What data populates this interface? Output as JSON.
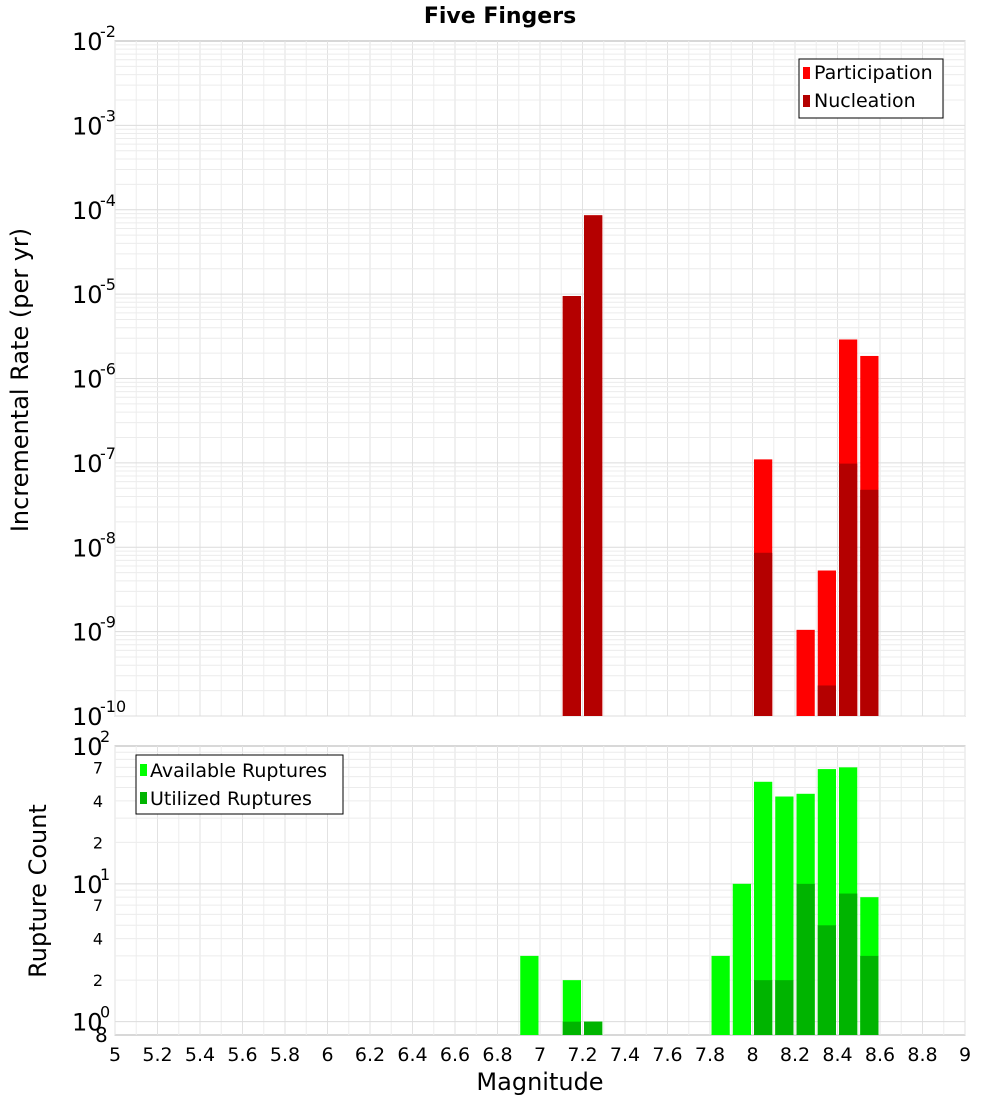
{
  "title": "Five Fingers",
  "colors": {
    "participation": "#ff0000",
    "nucleation": "#b40000",
    "available": "#00ff00",
    "utilized": "#00b400",
    "grid": "#e6e6e6",
    "frame": "#b0b0b0"
  },
  "chart_data": [
    {
      "type": "bar",
      "panel": "top",
      "ylabel": "Incremental Rate (per yr)",
      "yscale": "log",
      "ylim": [
        1e-10,
        0.01
      ],
      "xlim": [
        5,
        9
      ],
      "legend_position": "top-right",
      "series": [
        {
          "name": "Participation",
          "color": "#ff0000",
          "points": [
            [
              7.15,
              9.5e-06
            ],
            [
              7.25,
              8.6e-05
            ],
            [
              8.05,
              1.1e-07
            ],
            [
              8.25,
              1.05e-09
            ],
            [
              8.35,
              5.3e-09
            ],
            [
              8.45,
              2.9e-06
            ],
            [
              8.55,
              1.85e-06
            ]
          ]
        },
        {
          "name": "Nucleation",
          "color": "#b40000",
          "points": [
            [
              7.15,
              9.5e-06
            ],
            [
              7.25,
              8.6e-05
            ],
            [
              8.05,
              8.6e-09
            ],
            [
              8.35,
              2.3e-10
            ],
            [
              8.45,
              9.8e-08
            ],
            [
              8.55,
              4.8e-08
            ]
          ]
        }
      ]
    },
    {
      "type": "bar",
      "panel": "bottom",
      "ylabel": "Rupture Count",
      "xlabel": "Magnitude",
      "yscale": "log",
      "ylim": [
        0.8,
        100
      ],
      "xlim": [
        5,
        9
      ],
      "xticks": [
        "5",
        "5.2",
        "5.4",
        "5.6",
        "5.8",
        "6",
        "6.2",
        "6.4",
        "6.6",
        "6.8",
        "7",
        "7.2",
        "7.4",
        "7.6",
        "7.8",
        "8",
        "8.2",
        "8.4",
        "8.6",
        "8.8",
        "9"
      ],
      "legend_position": "top-left",
      "series": [
        {
          "name": "Available Ruptures",
          "color": "#00ff00",
          "points": [
            [
              6.95,
              3
            ],
            [
              7.15,
              2
            ],
            [
              7.25,
              1
            ],
            [
              7.85,
              3
            ],
            [
              7.95,
              10
            ],
            [
              8.05,
              55
            ],
            [
              8.15,
              43
            ],
            [
              8.25,
              45
            ],
            [
              8.35,
              68
            ],
            [
              8.45,
              70
            ],
            [
              8.55,
              8
            ]
          ]
        },
        {
          "name": "Utilized Ruptures",
          "color": "#00b400",
          "points": [
            [
              7.15,
              1
            ],
            [
              7.25,
              1
            ],
            [
              8.05,
              2
            ],
            [
              8.15,
              2
            ],
            [
              8.25,
              10
            ],
            [
              8.35,
              5
            ],
            [
              8.45,
              8.5
            ],
            [
              8.55,
              3
            ]
          ]
        }
      ]
    }
  ]
}
